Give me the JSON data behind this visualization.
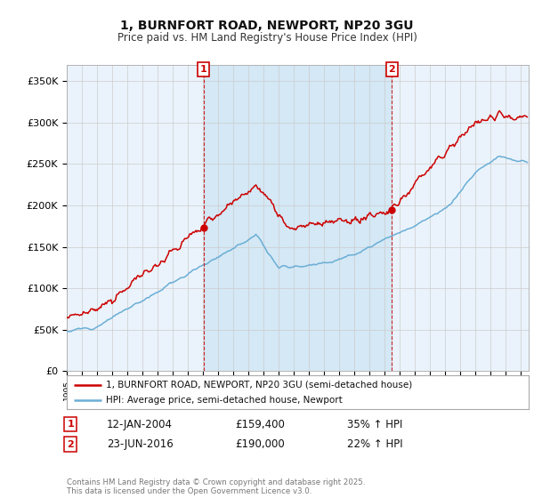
{
  "title": "1, BURNFORT ROAD, NEWPORT, NP20 3GU",
  "subtitle": "Price paid vs. HM Land Registry's House Price Index (HPI)",
  "ylim": [
    0,
    370000
  ],
  "xlim_start": 1995.0,
  "xlim_end": 2025.5,
  "legend_line1": "1, BURNFORT ROAD, NEWPORT, NP20 3GU (semi-detached house)",
  "legend_line2": "HPI: Average price, semi-detached house, Newport",
  "sale1_label": "1",
  "sale1_date": "12-JAN-2004",
  "sale1_price": "£159,400",
  "sale1_pct": "35% ↑ HPI",
  "sale1_x": 2004.04,
  "sale1_y": 159400,
  "sale2_label": "2",
  "sale2_date": "23-JUN-2016",
  "sale2_price": "£190,000",
  "sale2_pct": "22% ↑ HPI",
  "sale2_x": 2016.47,
  "sale2_y": 190000,
  "footer": "Contains HM Land Registry data © Crown copyright and database right 2025.\nThis data is licensed under the Open Government Licence v3.0.",
  "hpi_color": "#6baed6",
  "price_color": "#cc0000",
  "vline_color": "#cc0000",
  "shade_color": "#d4e8f5",
  "grid_color": "#cccccc",
  "background_color": "#ffffff",
  "plot_bg_color": "#eaf3fb",
  "ytick_vals": [
    0,
    50000,
    100000,
    150000,
    200000,
    250000,
    300000,
    350000
  ],
  "ytick_labels": [
    "£0",
    "£50K",
    "£100K",
    "£150K",
    "£200K",
    "£250K",
    "£300K",
    "£350K"
  ]
}
